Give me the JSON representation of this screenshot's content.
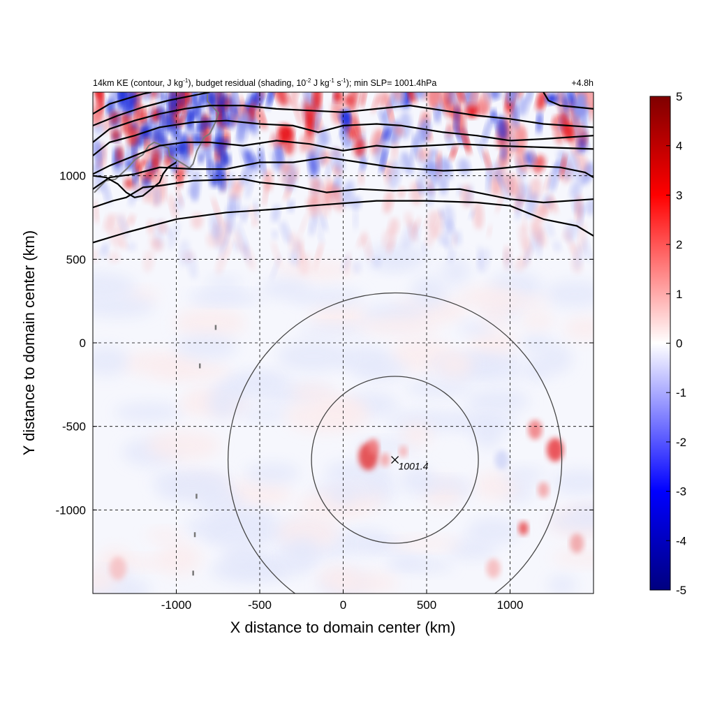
{
  "chart_data": {
    "type": "heatmap",
    "title_left": {
      "prefix": "14km KE (contour, J kg",
      "sup1": "-1",
      "mid1": "), budget residual (shading, 10",
      "sup2": "-2",
      "mid2": " J kg",
      "sup3": "-1",
      "mid3": " s",
      "sup4": "-1",
      "suffix": "); min SLP= 1001.4hPa"
    },
    "title_right": "+4.8h",
    "xlabel": "X distance to domain center (km)",
    "ylabel": "Y distance to domain center (km)",
    "xlim": [
      -1500,
      1500
    ],
    "ylim": [
      -1500,
      1500
    ],
    "xticks": [
      -1000,
      -500,
      0,
      500,
      1000
    ],
    "xtick_labels": [
      "-1000",
      "-500",
      "0",
      "500",
      "1000"
    ],
    "yticks": [
      -1000,
      -500,
      0,
      500,
      1000
    ],
    "ytick_labels": [
      "-1000",
      "-500",
      "0",
      "500",
      "1000"
    ],
    "grid": true,
    "colorbar": {
      "min": -5,
      "max": 5,
      "ticks": [
        5,
        4,
        3,
        2,
        1,
        0,
        -1,
        -2,
        -3,
        -4,
        -5
      ],
      "tick_labels": [
        "5",
        "4",
        "3",
        "2",
        "1",
        "0",
        "-1",
        "-2",
        "-3",
        "-4",
        "-5"
      ],
      "colormap": "blue-white-red",
      "low_color": "#00007f",
      "mid_color": "#ffffff",
      "high_color": "#7f0000"
    },
    "center": {
      "x": 310,
      "y": -700,
      "label": "1001.4"
    },
    "circles_km": [
      500,
      1000
    ],
    "ke_contours": [
      {
        "name": "c1",
        "points": [
          [
            -1500,
            600
          ],
          [
            -1300,
            660
          ],
          [
            -1000,
            740
          ],
          [
            -700,
            780
          ],
          [
            -400,
            800
          ],
          [
            -200,
            820
          ],
          [
            200,
            850
          ],
          [
            500,
            850
          ],
          [
            800,
            840
          ],
          [
            1000,
            820
          ],
          [
            1200,
            740
          ],
          [
            1400,
            700
          ],
          [
            1500,
            640
          ]
        ]
      },
      {
        "name": "c2",
        "points": [
          [
            -1500,
            810
          ],
          [
            -1380,
            850
          ],
          [
            -1300,
            870
          ],
          [
            -1200,
            930
          ],
          [
            -1100,
            940
          ],
          [
            -900,
            970
          ],
          [
            -600,
            980
          ],
          [
            -500,
            960
          ],
          [
            -300,
            940
          ],
          [
            -100,
            900
          ],
          [
            100,
            920
          ],
          [
            300,
            910
          ],
          [
            700,
            920
          ],
          [
            1000,
            860
          ],
          [
            1200,
            840
          ],
          [
            1500,
            860
          ]
        ]
      },
      {
        "name": "c3",
        "points": [
          [
            -1500,
            920
          ],
          [
            -1400,
            990
          ],
          [
            -1250,
            1010
          ],
          [
            -1100,
            1050
          ],
          [
            -900,
            1040
          ],
          [
            -700,
            1040
          ],
          [
            -500,
            1080
          ],
          [
            -300,
            1080
          ],
          [
            -100,
            1110
          ],
          [
            100,
            1080
          ],
          [
            300,
            1050
          ],
          [
            600,
            1030
          ],
          [
            900,
            1040
          ],
          [
            1100,
            1060
          ],
          [
            1300,
            1050
          ],
          [
            1450,
            1020
          ],
          [
            1500,
            990
          ]
        ]
      },
      {
        "name": "c4",
        "points": [
          [
            -1500,
            1010
          ],
          [
            -1400,
            1060
          ],
          [
            -1300,
            1100
          ],
          [
            -1200,
            1140
          ],
          [
            -1100,
            1180
          ],
          [
            -950,
            1200
          ],
          [
            -800,
            1200
          ],
          [
            -600,
            1180
          ],
          [
            -400,
            1210
          ],
          [
            -200,
            1190
          ],
          [
            0,
            1150
          ],
          [
            200,
            1180
          ],
          [
            300,
            1170
          ],
          [
            500,
            1180
          ],
          [
            700,
            1190
          ],
          [
            900,
            1180
          ],
          [
            1200,
            1170
          ],
          [
            1500,
            1160
          ]
        ]
      },
      {
        "name": "c5",
        "points": [
          [
            -1500,
            1120
          ],
          [
            -1400,
            1200
          ],
          [
            -1250,
            1240
          ],
          [
            -1100,
            1290
          ],
          [
            -900,
            1320
          ],
          [
            -700,
            1330
          ],
          [
            -500,
            1310
          ],
          [
            -300,
            1300
          ],
          [
            -150,
            1260
          ],
          [
            0,
            1300
          ],
          [
            200,
            1310
          ],
          [
            350,
            1300
          ],
          [
            600,
            1260
          ],
          [
            800,
            1240
          ],
          [
            1000,
            1210
          ],
          [
            1200,
            1220
          ],
          [
            1500,
            1240
          ]
        ]
      },
      {
        "name": "c6",
        "points": [
          [
            -1500,
            1200
          ],
          [
            -1400,
            1280
          ],
          [
            -1250,
            1330
          ],
          [
            -1100,
            1370
          ],
          [
            -950,
            1400
          ],
          [
            -800,
            1420
          ],
          [
            -600,
            1420
          ],
          [
            -400,
            1400
          ],
          [
            -200,
            1390
          ],
          [
            0,
            1380
          ],
          [
            200,
            1400
          ],
          [
            400,
            1420
          ],
          [
            600,
            1390
          ],
          [
            800,
            1360
          ],
          [
            1000,
            1340
          ],
          [
            1200,
            1310
          ],
          [
            1500,
            1290
          ]
        ]
      },
      {
        "name": "c7",
        "points": [
          [
            -1500,
            1300
          ],
          [
            -1350,
            1360
          ],
          [
            -1200,
            1410
          ],
          [
            -1050,
            1450
          ],
          [
            -900,
            1480
          ],
          [
            -800,
            1500
          ]
        ]
      },
      {
        "name": "c8",
        "points": [
          [
            1200,
            1500
          ],
          [
            1230,
            1450
          ],
          [
            1300,
            1420
          ],
          [
            1400,
            1410
          ],
          [
            1500,
            1400
          ]
        ]
      },
      {
        "name": "c9",
        "points": [
          [
            -1500,
            1370
          ],
          [
            -1400,
            1430
          ],
          [
            -1300,
            1460
          ],
          [
            -1200,
            1490
          ],
          [
            -1150,
            1500
          ]
        ]
      },
      {
        "name": "c10",
        "points": [
          [
            -1500,
            1000
          ],
          [
            -1420,
            990
          ],
          [
            -1350,
            950
          ],
          [
            -1300,
            900
          ],
          [
            -1250,
            870
          ],
          [
            -1200,
            880
          ],
          [
            -1150,
            920
          ],
          [
            -1100,
            960
          ],
          [
            -1080,
            1010
          ],
          [
            -1050,
            1050
          ],
          [
            -1000,
            1080
          ]
        ]
      }
    ]
  }
}
